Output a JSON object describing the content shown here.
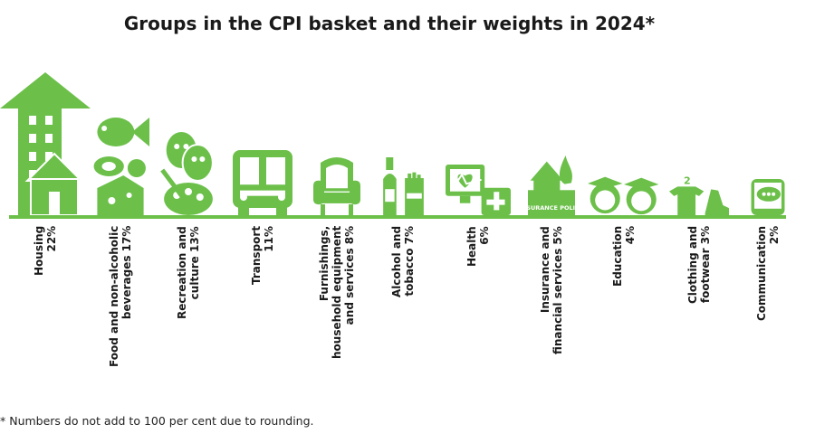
{
  "chart_data": {
    "type": "bar",
    "title": "Groups in the CPI basket and their weights in 2024*",
    "unit": "%",
    "categories": [
      {
        "line1": "Housing",
        "line2": "22%",
        "value": 22,
        "icon": "house-building-icon"
      },
      {
        "line1": "Food and non-alcoholic",
        "line2": "beverages 17%",
        "value": 17,
        "icon": "food-fish-cheese-icon"
      },
      {
        "line1": "Recreation and",
        "line2": "culture 13%",
        "value": 13,
        "icon": "theatre-masks-palette-icon"
      },
      {
        "line1": "Transport",
        "line2": "11%",
        "value": 11,
        "icon": "bus-icon"
      },
      {
        "line1": "Furnishings,",
        "line2": "household equipment",
        "line3": "and services 8%",
        "value": 8,
        "icon": "armchair-icon"
      },
      {
        "line1": "Alcohol and",
        "line2": "tobacco 7%",
        "value": 7,
        "icon": "bottle-cigarettes-icon"
      },
      {
        "line1": "Health",
        "line2": "6%",
        "value": 6,
        "icon": "heart-monitor-first-aid-icon"
      },
      {
        "line1": "Insurance and",
        "line2": "financial services 5%",
        "value": 5,
        "icon": "insurance-policy-icon",
        "icon_text": "INSURANCE POLICY"
      },
      {
        "line1": "Education",
        "line2": "4%",
        "value": 4,
        "icon": "graduates-icon"
      },
      {
        "line1": "Clothing and",
        "line2": "footwear 3%",
        "value": 3,
        "icon": "clothing-shoe-icon",
        "icon_text": "2"
      },
      {
        "line1": "Communication",
        "line2": "2%",
        "value": 2,
        "icon": "phone-chat-icon"
      }
    ],
    "accent_color": "#6cc04a",
    "footnote": "* Numbers do not add to 100 per cent due to rounding."
  }
}
